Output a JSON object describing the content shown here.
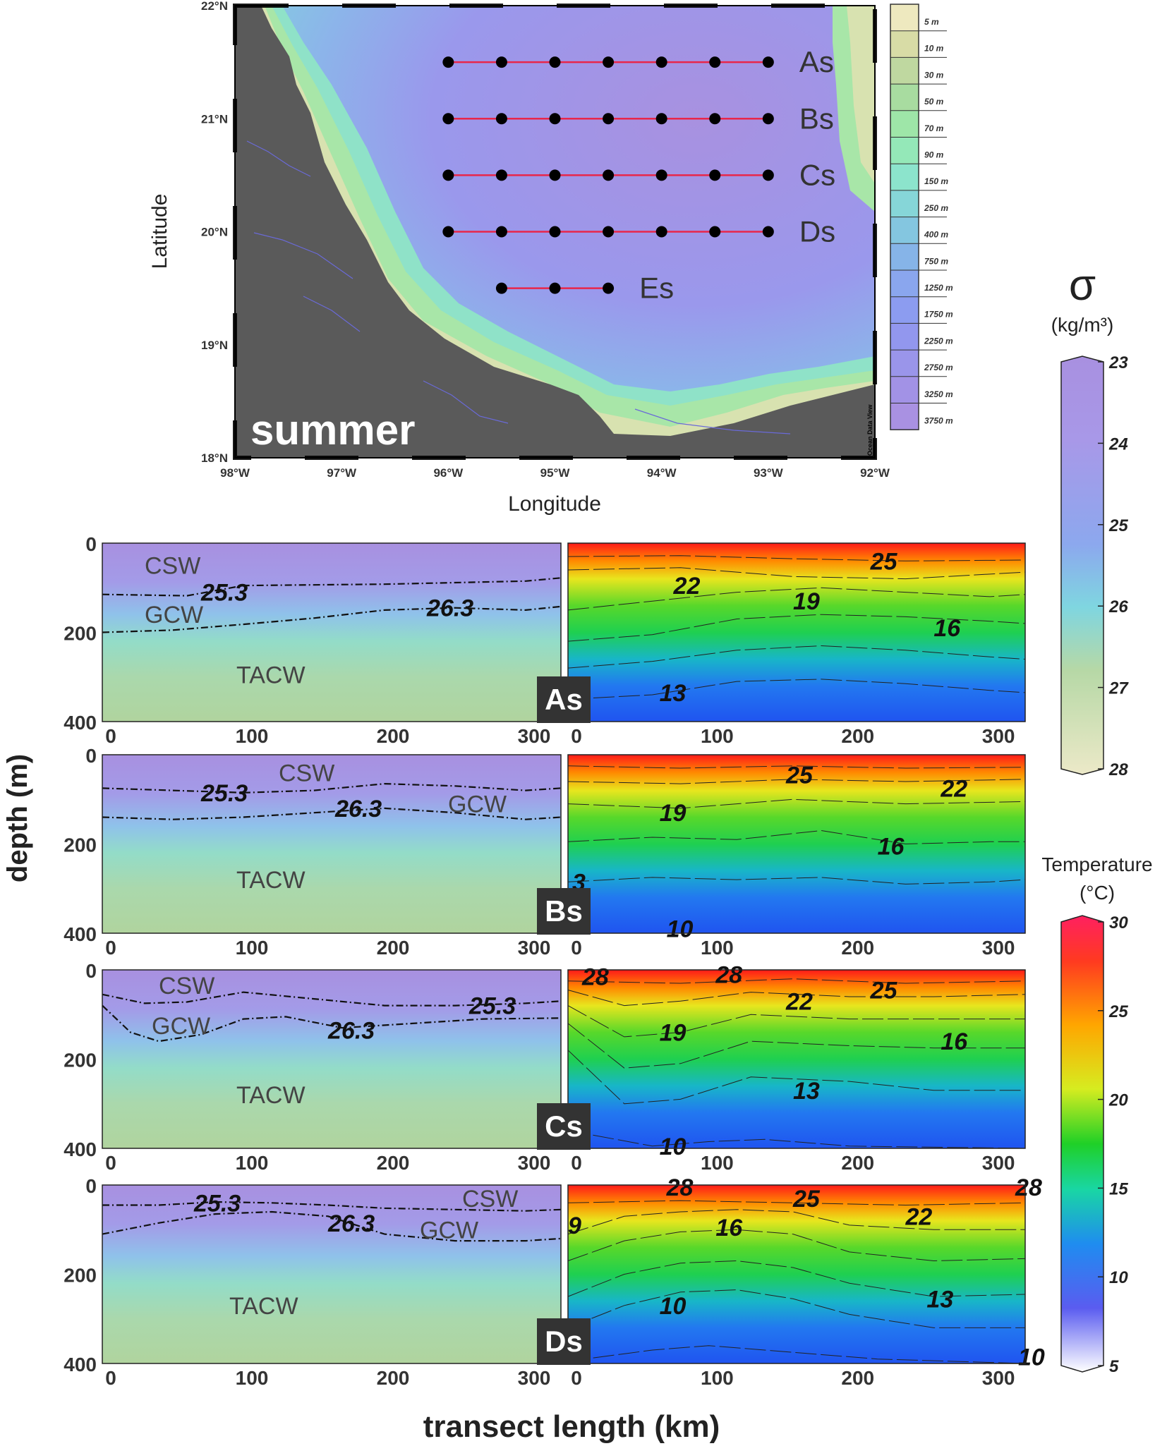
{
  "map": {
    "season_label": "summer",
    "xlabel": "Longitude",
    "ylabel": "Latitude",
    "lon_ticks": [
      "98°W",
      "97°W",
      "96°W",
      "95°W",
      "94°W",
      "93°W",
      "92°W"
    ],
    "lat_ticks": [
      "22°N",
      "21°N",
      "20°N",
      "19°N",
      "18°N"
    ],
    "credit": "Ocean Data View",
    "lon_range": [
      -98,
      -92
    ],
    "lat_range": [
      18,
      22
    ],
    "colors": {
      "land": "#5a5a5a",
      "shelf": "#e8e4b8",
      "deep": "#a891e0",
      "line": "#e8264a"
    },
    "transects": [
      {
        "name": "As",
        "lat": 21.5,
        "lons": [
          -96,
          -95.5,
          -95,
          -94.5,
          -94,
          -93.5,
          -93
        ]
      },
      {
        "name": "Bs",
        "lat": 21.0,
        "lons": [
          -96,
          -95.5,
          -95,
          -94.5,
          -94,
          -93.5,
          -93
        ]
      },
      {
        "name": "Cs",
        "lat": 20.5,
        "lons": [
          -96,
          -95.5,
          -95,
          -94.5,
          -94,
          -93.5,
          -93
        ]
      },
      {
        "name": "Ds",
        "lat": 20.0,
        "lons": [
          -96,
          -95.5,
          -95,
          -94.5,
          -94,
          -93.5,
          -93
        ]
      },
      {
        "name": "Es",
        "lat": 19.5,
        "lons": [
          -95.5,
          -95,
          -94.5
        ]
      }
    ],
    "bathymetry_legend": [
      "5 m",
      "10 m",
      "30 m",
      "50 m",
      "70 m",
      "90 m",
      "150 m",
      "250 m",
      "400 m",
      "750 m",
      "1250 m",
      "1750 m",
      "2250 m",
      "2750 m",
      "3250 m",
      "3750 m"
    ],
    "bathymetry_colors": [
      "#eee9bf",
      "#d8dca6",
      "#bfd8a0",
      "#a8dca0",
      "#9ee6a8",
      "#94e8b8",
      "#8ce4cc",
      "#86d6d8",
      "#84c6e0",
      "#86b4e8",
      "#8aa6ee",
      "#8c9cf0",
      "#9297ee",
      "#9a95ea",
      "#a292e6",
      "#a991e2"
    ]
  },
  "sections": {
    "xlabel": "transect length (km)",
    "ylabel": "depth (m)",
    "x_ticks": [
      "0",
      "100",
      "200",
      "300"
    ],
    "y_ticks": [
      "0",
      "200",
      "400"
    ],
    "x_range": [
      0,
      325
    ],
    "depth_range": [
      0,
      400
    ],
    "panels": [
      {
        "id": "As",
        "water_masses": [
          {
            "label": "CSW",
            "x": 30,
            "depth": 50
          },
          {
            "label": "GCW",
            "x": 30,
            "depth": 160
          },
          {
            "label": "TACW",
            "x": 95,
            "depth": 295
          }
        ],
        "density_labels": [
          {
            "label": "25.3",
            "x": 70,
            "depth": 110
          },
          {
            "label": "26.3",
            "x": 230,
            "depth": 145
          }
        ],
        "isopycnals": [
          {
            "x": [
              0,
              60,
              100,
              200,
              300,
              325
            ],
            "depth": [
              115,
              118,
              95,
              92,
              85,
              78
            ]
          },
          {
            "x": [
              0,
              50,
              100,
              150,
              200,
              250,
              300,
              325
            ],
            "depth": [
              200,
              195,
              182,
              168,
              150,
              145,
              150,
              142
            ]
          }
        ],
        "temp_labels": [
          {
            "label": "25",
            "x": 215,
            "depth": 40
          },
          {
            "label": "22",
            "x": 75,
            "depth": 95
          },
          {
            "label": "19",
            "x": 160,
            "depth": 130
          },
          {
            "label": "16",
            "x": 260,
            "depth": 190
          },
          {
            "label": "13",
            "x": 65,
            "depth": 335
          }
        ],
        "isotherms": [
          {
            "x": [
              0,
              80,
              160,
              240,
              325
            ],
            "depth": [
              30,
              28,
              35,
              40,
              38
            ]
          },
          {
            "x": [
              0,
              80,
              160,
              240,
              325
            ],
            "depth": [
              60,
              55,
              75,
              80,
              65
            ]
          },
          {
            "x": [
              0,
              60,
              120,
              180,
              240,
              300,
              325
            ],
            "depth": [
              150,
              130,
              110,
              100,
              110,
              120,
              115
            ]
          },
          {
            "x": [
              0,
              60,
              120,
              180,
              240,
              300,
              325
            ],
            "depth": [
              220,
              205,
              170,
              160,
              165,
              175,
              180
            ]
          },
          {
            "x": [
              0,
              60,
              120,
              180,
              240,
              300,
              325
            ],
            "depth": [
              280,
              265,
              240,
              230,
              240,
              255,
              260
            ]
          },
          {
            "x": [
              0,
              60,
              120,
              180,
              240,
              300,
              325
            ],
            "depth": [
              350,
              340,
              310,
              305,
              315,
              330,
              335
            ]
          }
        ]
      },
      {
        "id": "Bs",
        "water_masses": [
          {
            "label": "CSW",
            "x": 125,
            "depth": 40
          },
          {
            "label": "GCW",
            "x": 245,
            "depth": 110
          },
          {
            "label": "TACW",
            "x": 95,
            "depth": 280
          }
        ],
        "density_labels": [
          {
            "label": "25.3",
            "x": 70,
            "depth": 85
          },
          {
            "label": "26.3",
            "x": 165,
            "depth": 120
          }
        ],
        "isopycnals": [
          {
            "x": [
              0,
              50,
              100,
              150,
              200,
              250,
              300,
              325
            ],
            "depth": [
              75,
              80,
              85,
              80,
              65,
              70,
              80,
              75
            ]
          },
          {
            "x": [
              0,
              50,
              100,
              150,
              200,
              250,
              300,
              325
            ],
            "depth": [
              140,
              145,
              140,
              130,
              120,
              130,
              145,
              140
            ]
          }
        ],
        "temp_labels": [
          {
            "label": "25",
            "x": 155,
            "depth": 45
          },
          {
            "label": "22",
            "x": 265,
            "depth": 75
          },
          {
            "label": "19",
            "x": 65,
            "depth": 130
          },
          {
            "label": "16",
            "x": 220,
            "depth": 205
          },
          {
            "label": "3",
            "x": 3,
            "depth": 285
          },
          {
            "label": "10",
            "x": 70,
            "depth": 390
          }
        ],
        "isotherms": [
          {
            "x": [
              0,
              80,
              160,
              240,
              325
            ],
            "depth": [
              25,
              30,
              25,
              30,
              28
            ]
          },
          {
            "x": [
              0,
              80,
              160,
              240,
              325
            ],
            "depth": [
              60,
              65,
              55,
              60,
              55
            ]
          },
          {
            "x": [
              0,
              80,
              160,
              240,
              325
            ],
            "depth": [
              110,
              120,
              100,
              110,
              105
            ]
          },
          {
            "x": [
              0,
              60,
              120,
              180,
              240,
              300,
              325
            ],
            "depth": [
              195,
              185,
              190,
              170,
              200,
              195,
              195
            ]
          },
          {
            "x": [
              0,
              60,
              120,
              180,
              240,
              300,
              325
            ],
            "depth": [
              285,
              275,
              280,
              275,
              290,
              285,
              280
            ]
          }
        ]
      },
      {
        "id": "Cs",
        "water_masses": [
          {
            "label": "CSW",
            "x": 40,
            "depth": 35
          },
          {
            "label": "GCW",
            "x": 35,
            "depth": 125
          },
          {
            "label": "TACW",
            "x": 95,
            "depth": 280
          }
        ],
        "density_labels": [
          {
            "label": "25.3",
            "x": 260,
            "depth": 80
          },
          {
            "label": "26.3",
            "x": 160,
            "depth": 135
          }
        ],
        "isopycnals": [
          {
            "x": [
              0,
              30,
              60,
              100,
              150,
              200,
              250,
              300,
              325
            ],
            "depth": [
              55,
              75,
              72,
              50,
              65,
              80,
              80,
              75,
              70
            ]
          },
          {
            "x": [
              0,
              20,
              40,
              70,
              100,
              130,
              170,
              220,
              270,
              325
            ],
            "depth": [
              80,
              140,
              160,
              145,
              110,
              105,
              130,
              120,
              110,
              108
            ]
          }
        ],
        "temp_labels": [
          {
            "label": "28",
            "x": 10,
            "depth": 15
          },
          {
            "label": "28",
            "x": 105,
            "depth": 10
          },
          {
            "label": "22",
            "x": 155,
            "depth": 70
          },
          {
            "label": "25",
            "x": 215,
            "depth": 45
          },
          {
            "label": "19",
            "x": 65,
            "depth": 140
          },
          {
            "label": "16",
            "x": 265,
            "depth": 160
          },
          {
            "label": "13",
            "x": 160,
            "depth": 270
          },
          {
            "label": "10",
            "x": 65,
            "depth": 395
          }
        ],
        "isotherms": [
          {
            "x": [
              0,
              80,
              160,
              240,
              325
            ],
            "depth": [
              25,
              30,
              20,
              30,
              25
            ]
          },
          {
            "x": [
              0,
              40,
              80,
              130,
              200,
              260,
              325
            ],
            "depth": [
              45,
              80,
              70,
              50,
              60,
              60,
              55
            ]
          },
          {
            "x": [
              0,
              40,
              80,
              130,
              200,
              260,
              325
            ],
            "depth": [
              80,
              150,
              140,
              100,
              110,
              110,
              110
            ]
          },
          {
            "x": [
              0,
              40,
              80,
              130,
              200,
              260,
              325
            ],
            "depth": [
              120,
              220,
              210,
              160,
              170,
              175,
              175
            ]
          },
          {
            "x": [
              0,
              40,
              80,
              130,
              200,
              260,
              325
            ],
            "depth": [
              180,
              300,
              290,
              240,
              250,
              270,
              270
            ]
          },
          {
            "x": [
              0,
              60,
              100,
              140,
              200,
              325
            ],
            "depth": [
              360,
              395,
              385,
              380,
              395,
              400
            ]
          }
        ]
      },
      {
        "id": "Ds",
        "water_masses": [
          {
            "label": "CSW",
            "x": 255,
            "depth": 30
          },
          {
            "label": "GCW",
            "x": 225,
            "depth": 100
          },
          {
            "label": "TACW",
            "x": 90,
            "depth": 270
          }
        ],
        "density_labels": [
          {
            "label": "25.3",
            "x": 65,
            "depth": 40
          },
          {
            "label": "26.3",
            "x": 160,
            "depth": 85
          }
        ],
        "isopycnals": [
          {
            "x": [
              0,
              40,
              80,
              120,
              160,
              200,
              250,
              300,
              325
            ],
            "depth": [
              45,
              45,
              38,
              40,
              45,
              52,
              55,
              58,
              55
            ]
          },
          {
            "x": [
              0,
              40,
              80,
              120,
              160,
              200,
              250,
              300,
              325
            ],
            "depth": [
              110,
              85,
              65,
              60,
              70,
              110,
              125,
              125,
              120
            ]
          }
        ],
        "temp_labels": [
          {
            "label": "28",
            "x": 70,
            "depth": 5
          },
          {
            "label": "25",
            "x": 160,
            "depth": 30
          },
          {
            "label": "28",
            "x": 318,
            "depth": 5
          },
          {
            "label": "22",
            "x": 240,
            "depth": 70
          },
          {
            "label": "9",
            "x": 0,
            "depth": 90
          },
          {
            "label": "16",
            "x": 105,
            "depth": 95
          },
          {
            "label": "13",
            "x": 255,
            "depth": 255
          },
          {
            "label": "10",
            "x": 65,
            "depth": 270
          },
          {
            "label": "10",
            "x": 320,
            "depth": 385
          }
        ],
        "isotherms": [
          {
            "x": [
              0,
              80,
              160,
              240,
              325
            ],
            "depth": [
              40,
              35,
              40,
              45,
              40
            ]
          },
          {
            "x": [
              0,
              40,
              80,
              120,
              160,
              200,
              260,
              325
            ],
            "depth": [
              110,
              70,
              60,
              55,
              60,
              90,
              100,
              100
            ]
          },
          {
            "x": [
              0,
              40,
              80,
              120,
              160,
              200,
              260,
              325
            ],
            "depth": [
              170,
              125,
              105,
              100,
              110,
              150,
              170,
              165
            ]
          },
          {
            "x": [
              0,
              40,
              80,
              120,
              160,
              200,
              260,
              325
            ],
            "depth": [
              250,
              200,
              175,
              170,
              185,
              220,
              250,
              245
            ]
          },
          {
            "x": [
              0,
              40,
              80,
              120,
              160,
              200,
              260,
              325
            ],
            "depth": [
              320,
              270,
              240,
              235,
              255,
              290,
              320,
              320
            ]
          },
          {
            "x": [
              0,
              60,
              100,
              160,
              220,
              325
            ],
            "depth": [
              395,
              370,
              360,
              375,
              390,
              400
            ]
          }
        ]
      }
    ]
  },
  "colorbars": {
    "density": {
      "symbol": "σ",
      "unit": "(kg/m³)",
      "ticks": [
        "23",
        "24",
        "25",
        "26",
        "27",
        "28"
      ],
      "range": [
        23,
        28
      ],
      "colors": [
        "#a890e0",
        "#a898e8",
        "#8ca8ee",
        "#7fd6e0",
        "#b6d8a6",
        "#ece9c8"
      ]
    },
    "temperature": {
      "title": "Temperature",
      "unit": "(°C)",
      "ticks": [
        "30",
        "25",
        "20",
        "15",
        "10",
        "5"
      ],
      "range": [
        5,
        30
      ],
      "colors": [
        "#ffffff",
        "#5a5cf0",
        "#1f8cf0",
        "#19d6a4",
        "#1fd027",
        "#d6ec20",
        "#ffa600",
        "#ff3a20",
        "#ff2060"
      ]
    }
  }
}
